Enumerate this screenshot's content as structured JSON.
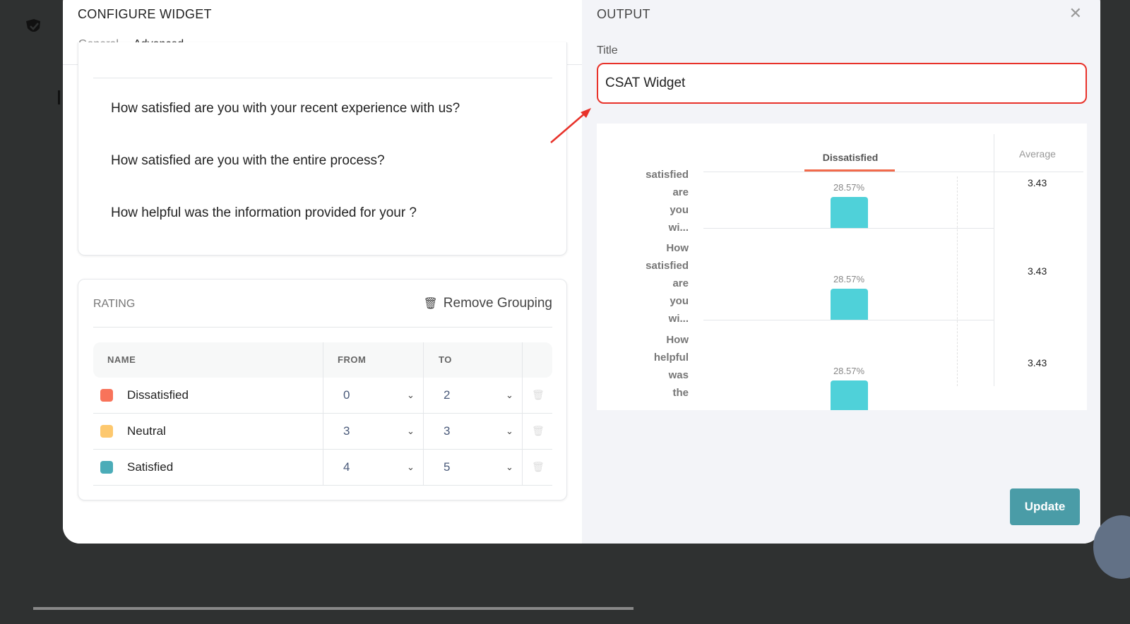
{
  "left_panel": {
    "title": "CONFIGURE WIDGET",
    "tabs": [
      {
        "label": "General",
        "active": false
      },
      {
        "label": "Advanced",
        "active": true
      }
    ],
    "questions": [
      "How satisfied are you with your recent experience with us?",
      "How satisfied are you with the entire process?",
      "How helpful was the  information provided for your ?"
    ],
    "rating": {
      "heading": "RATING",
      "remove_grouping": "Remove Grouping",
      "columns": [
        "NAME",
        "FROM",
        "TO"
      ],
      "rows": [
        {
          "name": "Dissatisfied",
          "color": "#f8735a",
          "from": "0",
          "to": "2"
        },
        {
          "name": "Neutral",
          "color": "#fdc86e",
          "from": "3",
          "to": "3"
        },
        {
          "name": "Satisfied",
          "color": "#4bacb8",
          "from": "4",
          "to": "5"
        }
      ]
    }
  },
  "right_panel": {
    "title": "OUTPUT",
    "title_label": "Title",
    "title_value": "CSAT Widget",
    "update_label": "Update"
  },
  "chart_data": {
    "type": "bar",
    "series_header": "Dissatisfied",
    "series_color": "#4fd1d9",
    "header_underline_color": "#f26a4b",
    "average_header": "Average",
    "categories": [
      "satisfied are you wi...",
      "How satisfied are you wi...",
      "How helpful was the"
    ],
    "values": [
      28.57,
      28.57,
      28.57
    ],
    "value_labels": [
      "28.57%",
      "28.57%",
      "28.57%"
    ],
    "averages": [
      "3.43",
      "3.43",
      "3.43"
    ]
  },
  "colors": {
    "accent": "#4a9ca7",
    "highlight": "#e8322a"
  }
}
